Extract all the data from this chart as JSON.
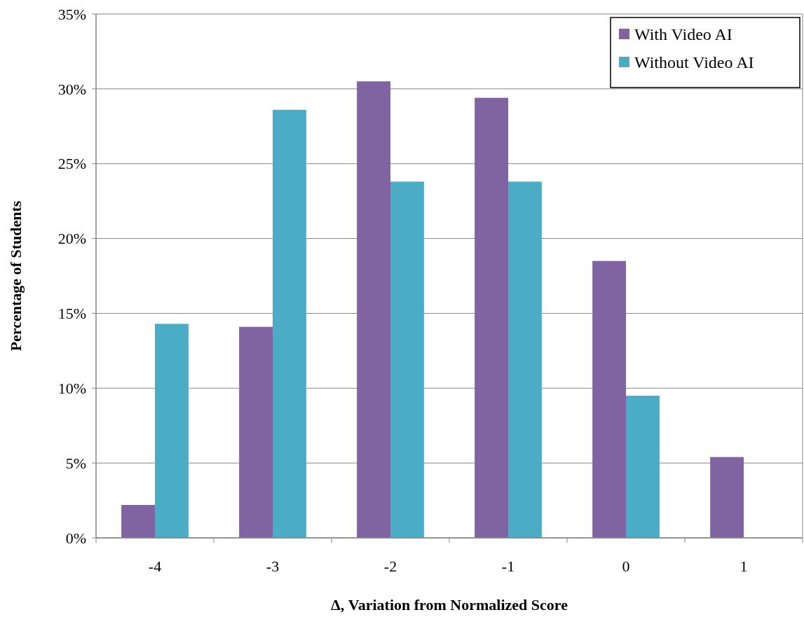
{
  "chart_data": {
    "type": "bar",
    "xlabel": "Δ, Variation from Normalized Score",
    "ylabel": "Percentage of Students",
    "categories": [
      "-4",
      "-3",
      "-2",
      "-1",
      "0",
      "1"
    ],
    "series": [
      {
        "name": "With Video AI",
        "color": "#8064a2",
        "values": [
          2.2,
          14.1,
          30.5,
          29.4,
          18.5,
          5.4
        ]
      },
      {
        "name": "Without Video AI",
        "color": "#4bacc6",
        "values": [
          14.3,
          28.6,
          23.8,
          23.8,
          9.5,
          null
        ]
      }
    ],
    "ylim": [
      0,
      35
    ],
    "yticks": [
      {
        "value": 0,
        "label": "0%"
      },
      {
        "value": 5,
        "label": "5%"
      },
      {
        "value": 10,
        "label": "10%"
      },
      {
        "value": 15,
        "label": "15%"
      },
      {
        "value": 20,
        "label": "20%"
      },
      {
        "value": 25,
        "label": "25%"
      },
      {
        "value": 30,
        "label": "30%"
      },
      {
        "value": 35,
        "label": "35%"
      }
    ],
    "grid": "y",
    "legend": "top right"
  }
}
